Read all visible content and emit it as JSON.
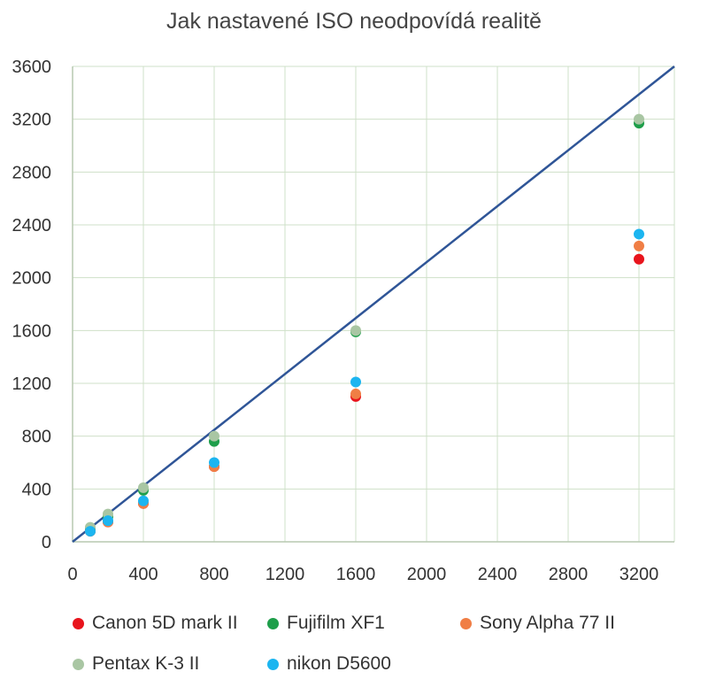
{
  "chart_data": {
    "type": "scatter",
    "title": "Jak nastavené ISO neodpovídá realitě",
    "xlim": [
      0,
      3400
    ],
    "ylim": [
      0,
      3600
    ],
    "x_ticks": [
      0,
      400,
      800,
      1200,
      1600,
      2000,
      2400,
      2800,
      3200
    ],
    "y_ticks": [
      0,
      400,
      800,
      1200,
      1600,
      2000,
      2400,
      2800,
      3200,
      3600
    ],
    "grid": true,
    "legend_position": "bottom",
    "reference_line": {
      "from": [
        0,
        0
      ],
      "to": [
        3400,
        3600
      ],
      "color": "#2F5597"
    },
    "series": [
      {
        "name": "Canon 5D mark II",
        "color": "#E8141C",
        "points": [
          [
            100,
            80
          ],
          [
            200,
            150
          ],
          [
            400,
            290
          ],
          [
            800,
            570
          ],
          [
            1600,
            1100
          ],
          [
            3200,
            2140
          ]
        ]
      },
      {
        "name": "Fujifilm XF1",
        "color": "#1E9E4A",
        "points": [
          [
            100,
            100
          ],
          [
            200,
            190
          ],
          [
            400,
            390
          ],
          [
            800,
            760
          ],
          [
            1600,
            1590
          ],
          [
            3200,
            3170
          ]
        ]
      },
      {
        "name": "Sony Alpha 77 II",
        "color": "#F07E45",
        "points": [
          [
            100,
            80
          ],
          [
            200,
            150
          ],
          [
            400,
            290
          ],
          [
            800,
            570
          ],
          [
            1600,
            1120
          ],
          [
            3200,
            2240
          ]
        ]
      },
      {
        "name": "Pentax K-3 II",
        "color": "#A9C6A3",
        "points": [
          [
            100,
            110
          ],
          [
            200,
            210
          ],
          [
            400,
            410
          ],
          [
            800,
            800
          ],
          [
            1600,
            1600
          ],
          [
            3200,
            3200
          ]
        ]
      },
      {
        "name": "nikon D5600",
        "color": "#1CB5F0",
        "points": [
          [
            100,
            80
          ],
          [
            200,
            160
          ],
          [
            400,
            310
          ],
          [
            800,
            600
          ],
          [
            1600,
            1210
          ],
          [
            3200,
            2330
          ]
        ]
      }
    ]
  }
}
